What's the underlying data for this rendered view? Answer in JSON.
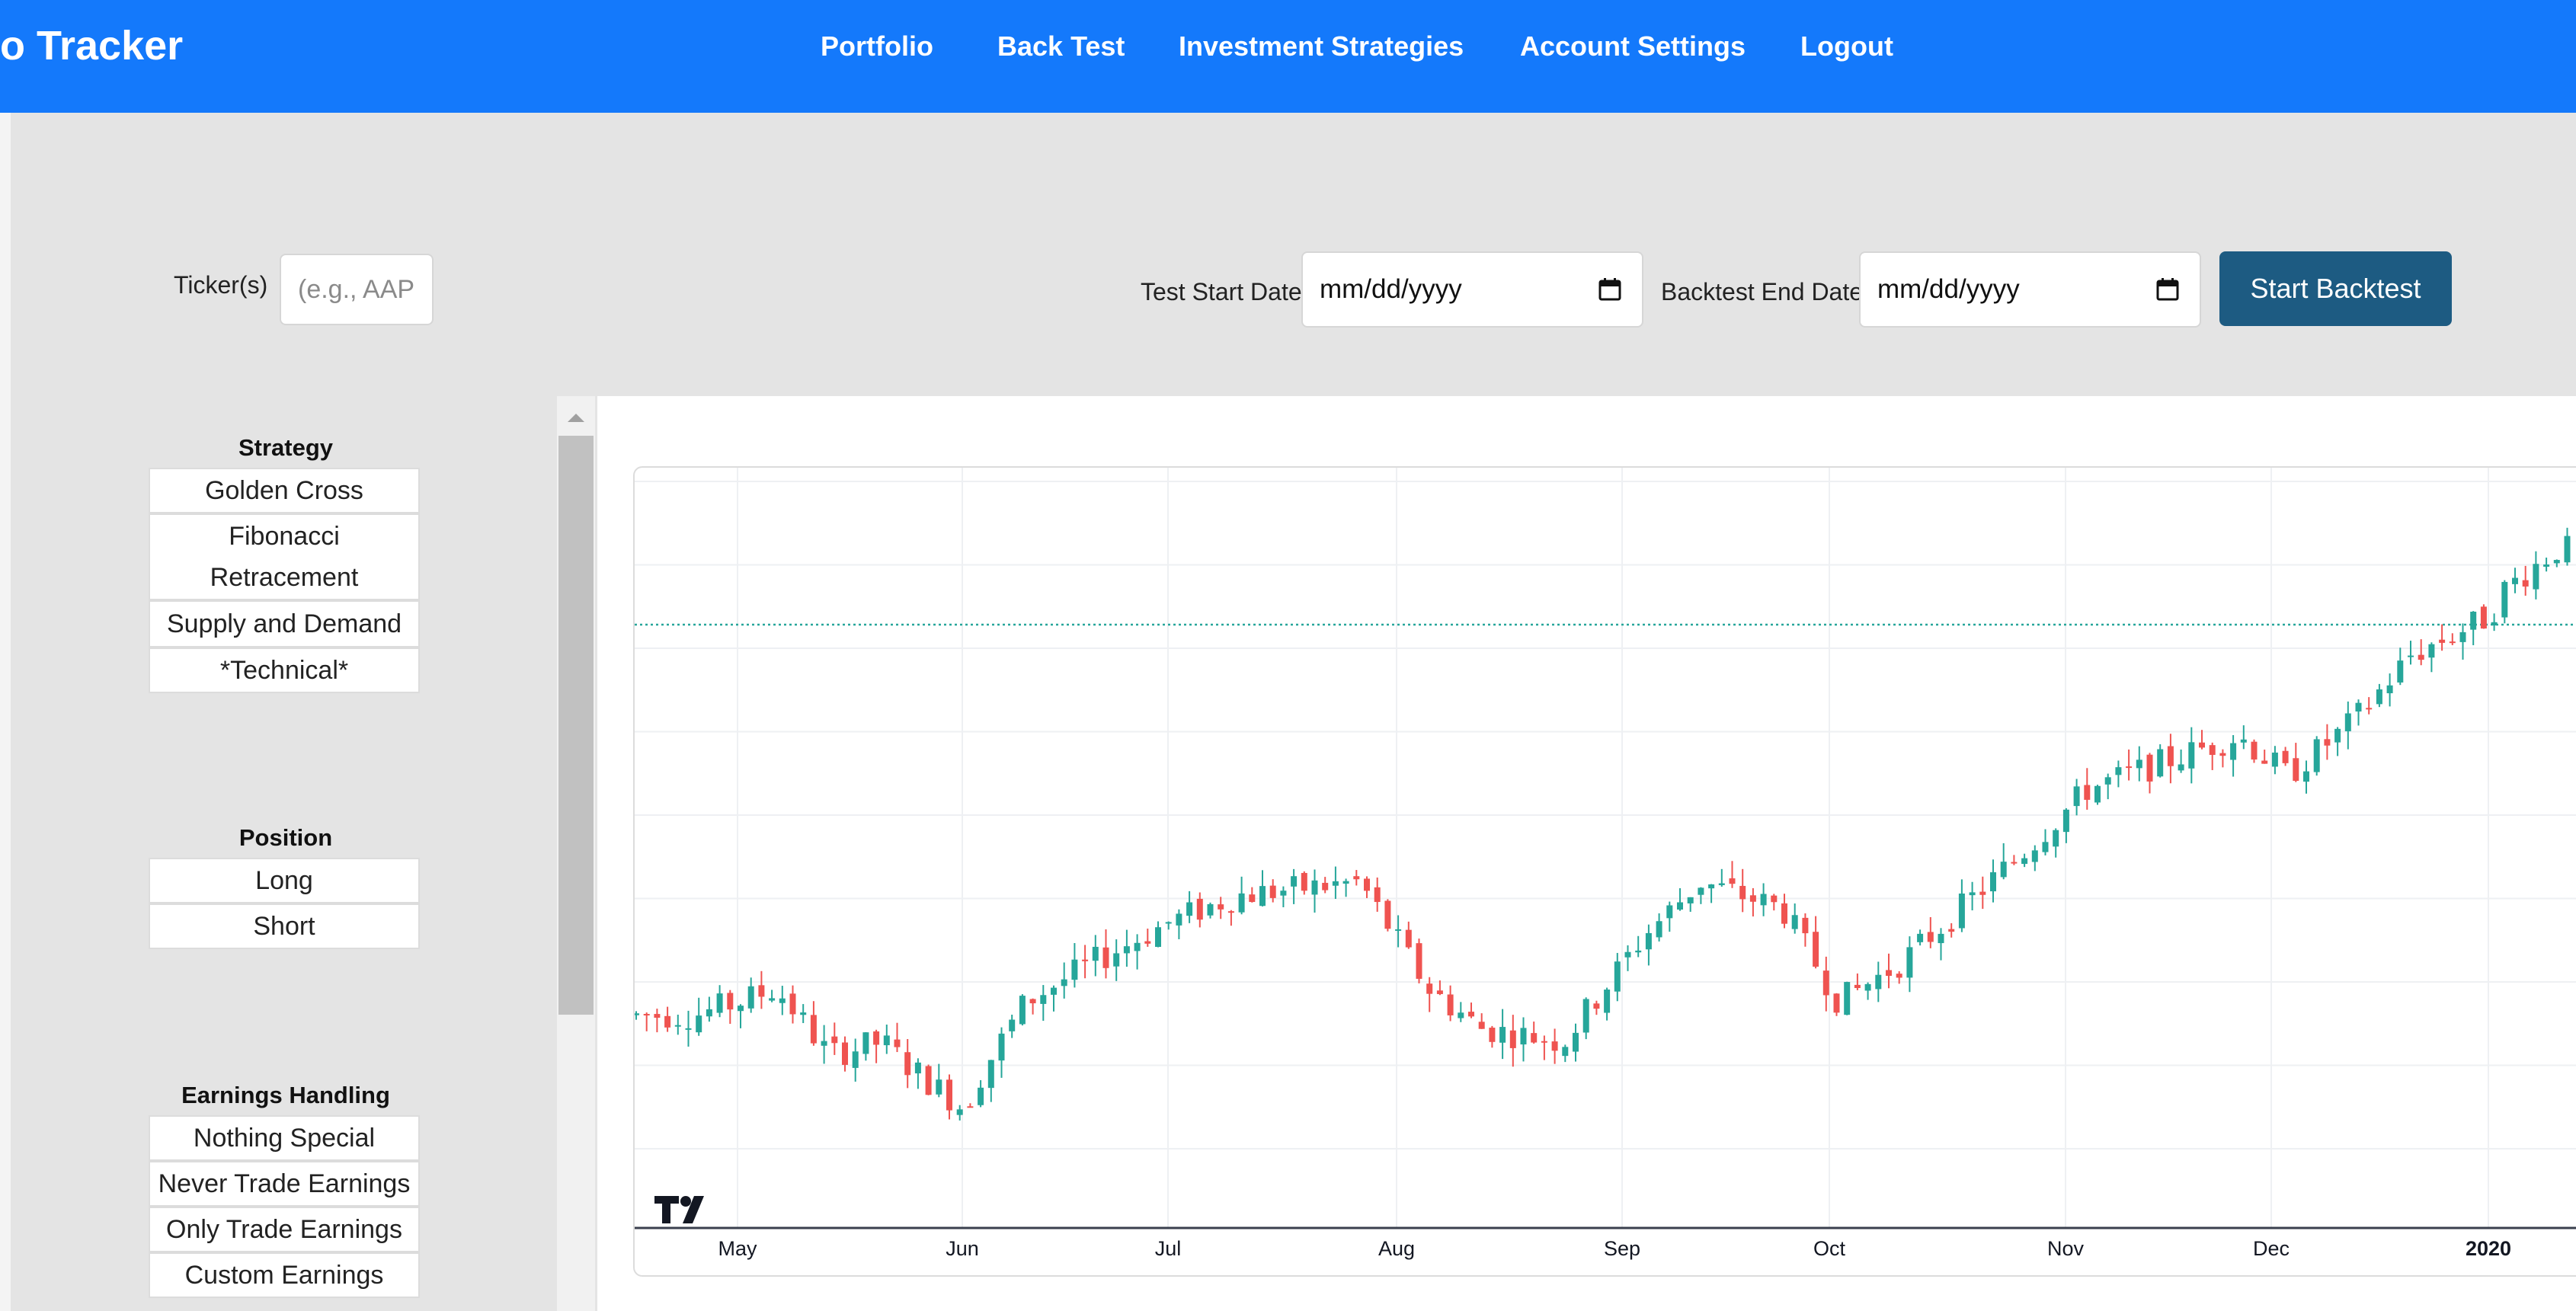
{
  "navbar": {
    "brand": "o Tracker",
    "links": [
      "Portfolio",
      "Back Test",
      "Investment Strategies",
      "Account Settings",
      "Logout"
    ]
  },
  "form": {
    "ticker_label": "Ticker(s)",
    "ticker_placeholder": "(e.g., AAPL",
    "start_label": "Test Start Date",
    "start_value": "mm/dd/yyyy",
    "end_label": "Backtest End Date",
    "end_value": "mm/dd/yyyy",
    "submit_label": "Start Backtest"
  },
  "strategy": {
    "title": "Strategy",
    "options": [
      "Golden Cross",
      "Fibonacci Retracement",
      "Supply and Demand",
      "*Technical*"
    ]
  },
  "position": {
    "title": "Position",
    "options": [
      "Long",
      "Short"
    ]
  },
  "earnings": {
    "title": "Earnings Handling",
    "options": [
      "Nothing Special",
      "Never Trade Earnings",
      "Only Trade Earnings",
      "Custom Earnings"
    ]
  },
  "colors": {
    "navbar": "#1479fb",
    "button": "#1d5b82",
    "candle_up": "#26a69a",
    "candle_down": "#ef5350"
  },
  "icons": {
    "date_picker": "calendar-icon",
    "scroll_up": "triangle-up-icon",
    "chart_brand": "tradingview-logo"
  },
  "chart_data": {
    "type": "candlestick",
    "x_tick_labels": [
      "May",
      "Jun",
      "Jul",
      "Aug",
      "Sep",
      "Oct",
      "Nov",
      "Dec",
      "2020"
    ],
    "price_line": "dotted horizontal line in upper section",
    "grid": true,
    "trend_points": [
      {
        "x": "Apr 25",
        "y": 56
      },
      {
        "x": "May 1",
        "y": 57
      },
      {
        "x": "May 6",
        "y": 58
      },
      {
        "x": "May 13",
        "y": 53
      },
      {
        "x": "May 20",
        "y": 54
      },
      {
        "x": "May 24",
        "y": 52
      },
      {
        "x": "May 31",
        "y": 49
      },
      {
        "x": "Jun 4",
        "y": 52
      },
      {
        "x": "Jun 10",
        "y": 57
      },
      {
        "x": "Jun 20",
        "y": 60
      },
      {
        "x": "Jul 1",
        "y": 63
      },
      {
        "x": "Jul 10",
        "y": 65
      },
      {
        "x": "Jul 26",
        "y": 66
      },
      {
        "x": "Aug 5",
        "y": 58
      },
      {
        "x": "Aug 12",
        "y": 55
      },
      {
        "x": "Aug 23",
        "y": 54
      },
      {
        "x": "Sep 4",
        "y": 62
      },
      {
        "x": "Sep 12",
        "y": 66
      },
      {
        "x": "Sep 24",
        "y": 64
      },
      {
        "x": "Oct 2",
        "y": 57
      },
      {
        "x": "Oct 10",
        "y": 60
      },
      {
        "x": "Oct 25",
        "y": 68
      },
      {
        "x": "Nov 4",
        "y": 73
      },
      {
        "x": "Nov 15",
        "y": 75
      },
      {
        "x": "Nov 26",
        "y": 77
      },
      {
        "x": "Dec 3",
        "y": 74
      },
      {
        "x": "Dec 12",
        "y": 78
      },
      {
        "x": "Dec 20",
        "y": 83
      },
      {
        "x": "Dec 31",
        "y": 86
      },
      {
        "x": "Jan 3",
        "y": 88
      },
      {
        "x": "Jan 10",
        "y": 91
      }
    ]
  }
}
